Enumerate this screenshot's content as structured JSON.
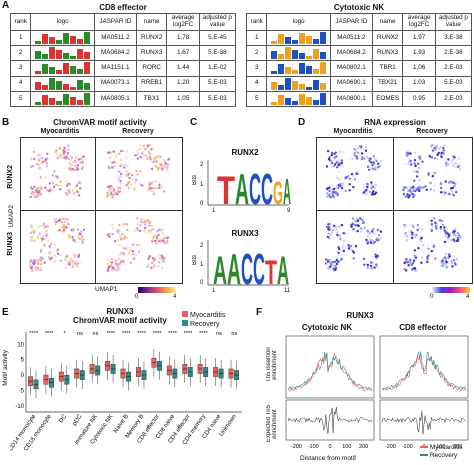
{
  "panelA": {
    "label": "A",
    "left_title": "CD8 effector",
    "right_title": "Cytotoxic NK",
    "headers": [
      "rank",
      "logo",
      "JASPAR ID",
      "name",
      "average log2FC",
      "adjusted p value"
    ],
    "left_rows": [
      {
        "rank": "1",
        "id": "MA0511.2",
        "name": "RUNX2",
        "fc": "1.78",
        "p": "5.E-45"
      },
      {
        "rank": "2",
        "id": "MA0684.2",
        "name": "RUNX3",
        "fc": "1.67",
        "p": "5.E-38"
      },
      {
        "rank": "3",
        "id": "MA1151.1",
        "name": "RORC",
        "fc": "1.44",
        "p": "1.E-02"
      },
      {
        "rank": "4",
        "id": "MA0073.1",
        "name": "RREB1",
        "fc": "1.20",
        "p": "5.E-03"
      },
      {
        "rank": "5",
        "id": "MA0805.1",
        "name": "TBX1",
        "fc": "1.05",
        "p": "5.E-03"
      }
    ],
    "right_rows": [
      {
        "rank": "1",
        "id": "MA0511.2",
        "name": "RUNX2",
        "fc": "1.97",
        "p": "3.E-38"
      },
      {
        "rank": "2",
        "id": "MA0684.2",
        "name": "RUNX3",
        "fc": "1.93",
        "p": "2.E-38"
      },
      {
        "rank": "3",
        "id": "MA0802.1",
        "name": "TBR1",
        "fc": "1.06",
        "p": "2.E-03"
      },
      {
        "rank": "4",
        "id": "MA0690.1",
        "name": "TBX21",
        "fc": "1.03",
        "p": "5.E-03"
      },
      {
        "rank": "5",
        "id": "MA0800.1",
        "name": "EOMES",
        "fc": "0.95",
        "p": "2.E-03"
      }
    ]
  },
  "panelB": {
    "label": "B",
    "title": "ChromVAR motif activity",
    "cols": [
      "Myocarditis",
      "Recovery"
    ],
    "rows": [
      "RUNX2",
      "RUNX3"
    ],
    "ylabel": "UMAP2",
    "xlabel": "UMAP1",
    "scale_min": "0",
    "scale_max": "4"
  },
  "panelC": {
    "label": "C",
    "logo1_title": "RUNX2",
    "logo2_title": "RUNX3",
    "ylabel": "Bits",
    "logo1_start": "1",
    "logo1_end": "9",
    "logo2_start": "1",
    "logo2_end": "11",
    "ytick0": "0",
    "ytick1": "1",
    "ytick2": "2"
  },
  "panelD": {
    "label": "D",
    "title": "RNA expression",
    "cols": [
      "Myocarditis",
      "Recovery"
    ],
    "rows": [
      "RUNX2",
      "RUNX3"
    ],
    "scale_min": "0",
    "scale_max": "4"
  },
  "panelE": {
    "label": "E",
    "title": "RUNX3",
    "subtitle": "ChromVAR motif activity",
    "ylabel": "Motif activity",
    "legend": [
      {
        "name": "Myocarditis",
        "color": "#e8605a"
      },
      {
        "name": "Recovery",
        "color": "#2e8a8a"
      }
    ],
    "chart_data": {
      "type": "box",
      "yticks": [
        "-10",
        "-5",
        "0",
        "5",
        "10"
      ],
      "ylim": [
        -12,
        14
      ],
      "categories": [
        "CD14 monocyte",
        "CD16 monocyte",
        "DC",
        "pDC",
        "immature NK",
        "Cytotoxic NK",
        "Naive B",
        "Memory B",
        "CD8 effector",
        "CD8 naive",
        "CD4 effector",
        "CD4 memory",
        "CD4 naive",
        "Unknown"
      ],
      "significance": [
        "****",
        "****",
        "*",
        "ns",
        "ns",
        "****",
        "****",
        "****",
        "****",
        "****",
        "****",
        "****",
        "ns",
        "ns"
      ],
      "series": [
        {
          "name": "Myocarditis",
          "medians": [
            -2,
            -1.5,
            -0.5,
            0.5,
            2,
            3,
            0.5,
            1,
            4,
            1.5,
            2,
            2,
            1,
            0.5
          ],
          "q1": [
            -3.5,
            -3,
            -2,
            -1,
            0.5,
            1.5,
            -1,
            -0.5,
            2.5,
            0,
            0.5,
            0.5,
            -0.5,
            -1
          ],
          "q3": [
            -0.5,
            0,
            1,
            2,
            3.5,
            4.5,
            2,
            2.5,
            5.5,
            3,
            3.5,
            3.5,
            2.5,
            2
          ]
        },
        {
          "name": "Recovery",
          "medians": [
            -3,
            -2.5,
            -1.5,
            0,
            1.5,
            2,
            -0.5,
            0,
            3,
            0.5,
            1,
            1,
            0.5,
            0
          ],
          "q1": [
            -4.5,
            -4,
            -3,
            -1.5,
            0,
            0.5,
            -2,
            -1.5,
            1.5,
            -1,
            -0.5,
            -0.5,
            -1,
            -1.5
          ],
          "q3": [
            -1.5,
            -1,
            0,
            1.5,
            3,
            3.5,
            1,
            1.5,
            4.5,
            2,
            2.5,
            2.5,
            2,
            1.5
          ]
        }
      ]
    }
  },
  "panelF": {
    "label": "F",
    "title": "RUNX3",
    "left_title": "Cytotoxic NK",
    "right_title": "CD8 effector",
    "ylabel_top": "Tn5 insertion enrichment",
    "ylabel_bottom": "Expected Tn5 enrichment",
    "xlabel": "Distance from motif",
    "xticks": [
      "-200",
      "-100",
      "0",
      "100",
      "200"
    ],
    "legend": [
      {
        "name": "Myocarditis",
        "color": "#e8605a"
      },
      {
        "name": "Recovery",
        "color": "#2e8a8a"
      }
    ]
  }
}
